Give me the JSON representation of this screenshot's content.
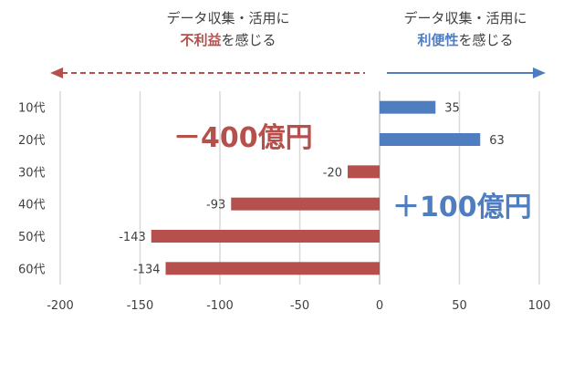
{
  "header": {
    "left_line1": "データ収集・活用に",
    "left_em": "不利益",
    "left_rest": "を感じる",
    "right_line1": "データ収集・活用に",
    "right_em": "利便性",
    "right_rest": "を感じる"
  },
  "callouts": {
    "negative_total": "－400億円",
    "positive_total": "＋100億円"
  },
  "colors": {
    "negative": "#b5504c",
    "positive": "#4f7ec0",
    "grid": "#d9d9d9",
    "text": "#404040"
  },
  "chart_data": {
    "type": "bar",
    "orientation": "horizontal",
    "categories": [
      "10代",
      "20代",
      "30代",
      "40代",
      "50代",
      "60代"
    ],
    "values": [
      35,
      63,
      -20,
      -93,
      -143,
      -134
    ],
    "xlim": [
      -200,
      100
    ],
    "xticks": [
      "-200",
      "-150",
      "-100",
      "-50",
      "0",
      "50",
      "100"
    ],
    "grid": "vertical",
    "title": "",
    "xlabel": "",
    "ylabel": ""
  }
}
